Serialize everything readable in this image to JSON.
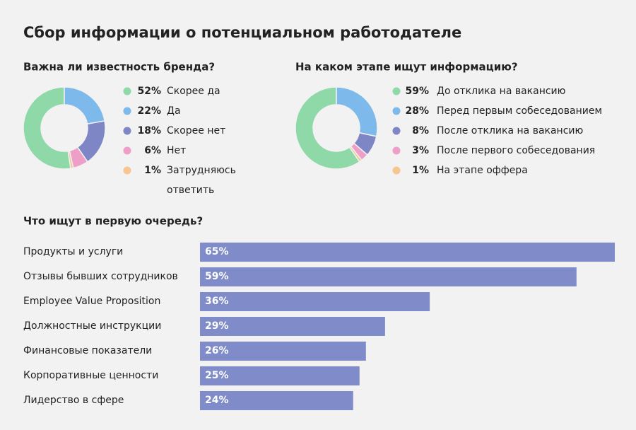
{
  "title": "Сбор информации о потенциальном работодателе",
  "chart_data": [
    {
      "type": "donut",
      "title": "Важна ли известность бренда?",
      "categories": [
        "Скорее да",
        "Да",
        "Скорее нет",
        "Нет",
        "Затрудняюсь ответить"
      ],
      "values": [
        52,
        22,
        18,
        6,
        1
      ],
      "value_labels": [
        "52%",
        "22%",
        "18%",
        "6%",
        "1%"
      ],
      "colors": [
        "#8fd9a8",
        "#7db9ea",
        "#7f86c6",
        "#ee9fc8",
        "#f6c590"
      ]
    },
    {
      "type": "donut",
      "title": "На каком этапе ищут информацию?",
      "categories": [
        "До отклика на вакансию",
        "Перед первым собеседованием",
        "После отклика на вакансию",
        "После первого собеседования",
        "На этапе оффера"
      ],
      "values": [
        59,
        28,
        8,
        3,
        1
      ],
      "value_labels": [
        "59%",
        "28%",
        "8%",
        "3%",
        "1%"
      ],
      "colors": [
        "#8fd9a8",
        "#7db9ea",
        "#7f86c6",
        "#ee9fc8",
        "#f6c590"
      ]
    },
    {
      "type": "hbar",
      "title": "Что ищут в первую очередь?",
      "categories": [
        "Продукты и услуги",
        "Отзывы бывших сотрудников",
        "Employee Value Proposition",
        "Должностные инструкции",
        "Финансовые показатели",
        "Корпоративные ценности",
        "Лидерство в сфере"
      ],
      "values": [
        65,
        59,
        36,
        29,
        26,
        25,
        24
      ],
      "value_labels": [
        "65%",
        "59%",
        "36%",
        "29%",
        "26%",
        "25%",
        "24%"
      ],
      "color": "#7f8cc9"
    }
  ]
}
